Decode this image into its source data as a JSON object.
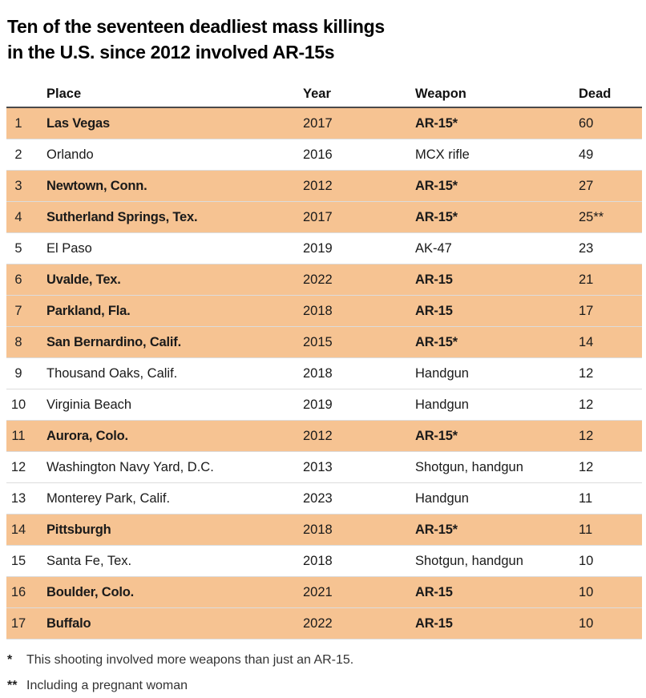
{
  "title": {
    "line1": "Ten of the seventeen deadliest mass killings",
    "line2": "in the U.S. since 2012 involved AR-15s"
  },
  "colors": {
    "highlight": "#F6C392",
    "header_rule": "#4A4A4A",
    "row_divider": "#DCDCDC",
    "text": "#1A1A1A"
  },
  "chart_data": {
    "type": "table",
    "title": "Ten of the seventeen deadliest mass killings in the U.S. since 2012 involved AR-15s",
    "columns": [
      "Place",
      "Year",
      "Weapon",
      "Dead"
    ],
    "highlight_meaning": "Rows highlighted in orange involved an AR-15",
    "rows": [
      {
        "rank": "1",
        "place": "Las Vegas",
        "year": "2017",
        "weapon": "AR-15*",
        "dead": "60",
        "highlight": true
      },
      {
        "rank": "2",
        "place": "Orlando",
        "year": "2016",
        "weapon": "MCX rifle",
        "dead": "49",
        "highlight": false
      },
      {
        "rank": "3",
        "place": "Newtown, Conn.",
        "year": "2012",
        "weapon": "AR-15*",
        "dead": "27",
        "highlight": true
      },
      {
        "rank": "4",
        "place": "Sutherland Springs, Tex.",
        "year": "2017",
        "weapon": "AR-15*",
        "dead": "25**",
        "highlight": true
      },
      {
        "rank": "5",
        "place": "El Paso",
        "year": "2019",
        "weapon": "AK-47",
        "dead": "23",
        "highlight": false
      },
      {
        "rank": "6",
        "place": "Uvalde, Tex.",
        "year": "2022",
        "weapon": "AR-15",
        "dead": "21",
        "highlight": true
      },
      {
        "rank": "7",
        "place": "Parkland, Fla.",
        "year": "2018",
        "weapon": "AR-15",
        "dead": "17",
        "highlight": true
      },
      {
        "rank": "8",
        "place": "San Bernardino, Calif.",
        "year": "2015",
        "weapon": "AR-15*",
        "dead": "14",
        "highlight": true
      },
      {
        "rank": "9",
        "place": "Thousand Oaks, Calif.",
        "year": "2018",
        "weapon": "Handgun",
        "dead": "12",
        "highlight": false
      },
      {
        "rank": "10",
        "place": "Virginia Beach",
        "year": "2019",
        "weapon": "Handgun",
        "dead": "12",
        "highlight": false
      },
      {
        "rank": "11",
        "place": "Aurora, Colo.",
        "year": "2012",
        "weapon": "AR-15*",
        "dead": "12",
        "highlight": true
      },
      {
        "rank": "12",
        "place": "Washington Navy Yard, D.C.",
        "year": "2013",
        "weapon": "Shotgun, handgun",
        "dead": "12",
        "highlight": false
      },
      {
        "rank": "13",
        "place": "Monterey Park, Calif.",
        "year": "2023",
        "weapon": "Handgun",
        "dead": "11",
        "highlight": false
      },
      {
        "rank": "14",
        "place": "Pittsburgh",
        "year": "2018",
        "weapon": "AR-15*",
        "dead": "11",
        "highlight": true
      },
      {
        "rank": "15",
        "place": "Santa Fe, Tex.",
        "year": "2018",
        "weapon": "Shotgun, handgun",
        "dead": "10",
        "highlight": false
      },
      {
        "rank": "16",
        "place": "Boulder, Colo.",
        "year": "2021",
        "weapon": "AR-15",
        "dead": "10",
        "highlight": true
      },
      {
        "rank": "17",
        "place": "Buffalo",
        "year": "2022",
        "weapon": "AR-15",
        "dead": "10",
        "highlight": true
      }
    ]
  },
  "footnotes": [
    {
      "marker": "*",
      "text": "This shooting involved more weapons than just an AR-15."
    },
    {
      "marker": "**",
      "text": "Including a pregnant woman"
    }
  ]
}
